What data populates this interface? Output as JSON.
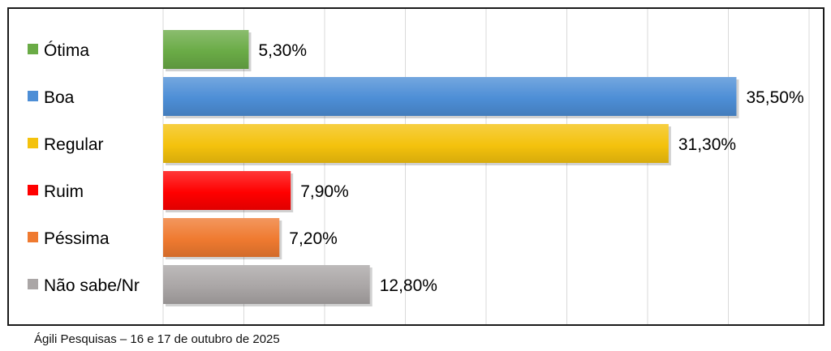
{
  "chart_data": {
    "type": "bar",
    "orientation": "horizontal",
    "categories": [
      "Ótima",
      "Boa",
      "Regular",
      "Ruim",
      "Péssima",
      "Não sabe/Nr"
    ],
    "values": [
      5.3,
      35.5,
      31.3,
      7.9,
      7.2,
      12.8
    ],
    "value_labels": [
      "5,30%",
      "35,50%",
      "31,30%",
      "7,90%",
      "7,20%",
      "12,80%"
    ],
    "colors": [
      "#6aab46",
      "#4d8ed6",
      "#f4c20d",
      "#ff0000",
      "#ef7a30",
      "#aaa6a6"
    ],
    "xlim": [
      0,
      40
    ],
    "grid": true,
    "legend": "left"
  },
  "source": "Ágili Pesquisas – 16 e 17 de outubro de 2025"
}
